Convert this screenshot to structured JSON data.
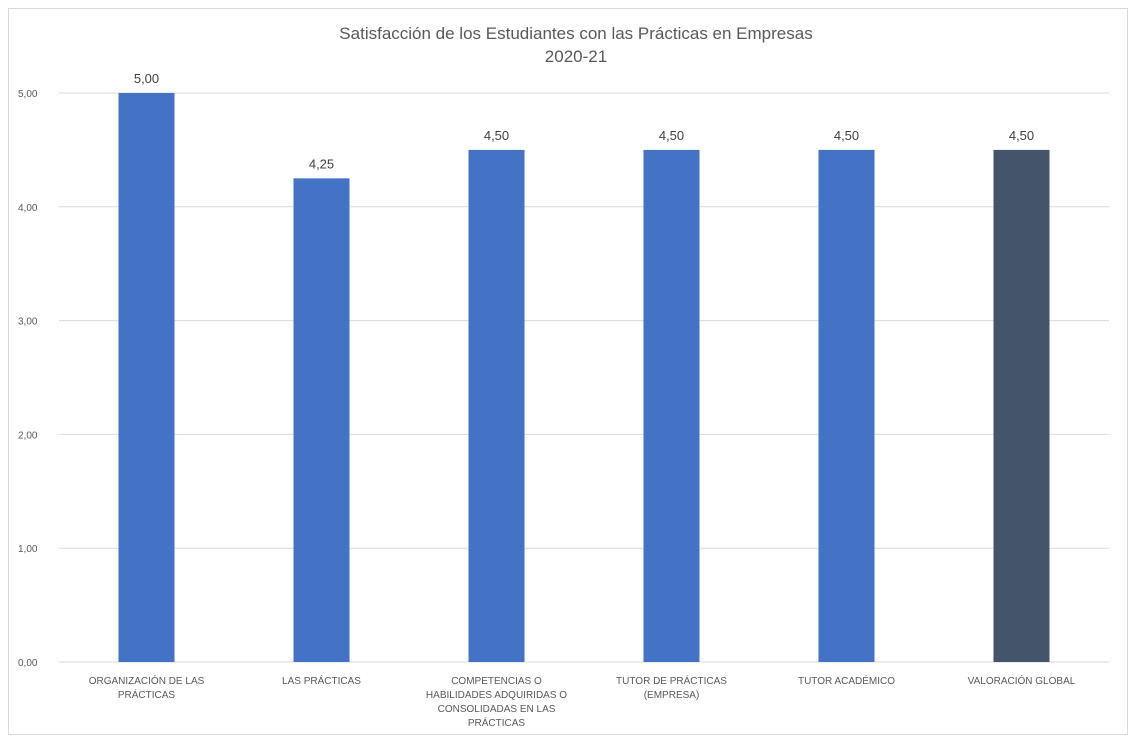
{
  "chart_data": {
    "type": "bar",
    "title": [
      "Satisfacción de los Estudiantes con las Prácticas en Empresas",
      "2020-21"
    ],
    "categories": [
      [
        "ORGANIZACIÓN DE LAS",
        "PRÁCTICAS"
      ],
      [
        "LAS PRÁCTICAS"
      ],
      [
        "COMPETENCIAS O",
        "HABILIDADES ADQUIRIDAS O",
        "CONSOLIDADAS EN LAS",
        "PRÁCTICAS"
      ],
      [
        "TUTOR DE PRÁCTICAS",
        "(EMPRESA)"
      ],
      [
        "TUTOR ACADÉMICO"
      ],
      [
        "VALORACIÓN GLOBAL"
      ]
    ],
    "values": [
      5.0,
      4.25,
      4.5,
      4.5,
      4.5,
      4.5
    ],
    "data_labels": [
      "5,00",
      "4,25",
      "4,50",
      "4,50",
      "4,50",
      "4,50"
    ],
    "bar_colors": [
      "#4472c4",
      "#4472c4",
      "#4472c4",
      "#4472c4",
      "#4472c4",
      "#44546a"
    ],
    "ylim": [
      0,
      5
    ],
    "yticks": [
      0,
      1,
      2,
      3,
      4,
      5
    ],
    "ytick_labels": [
      "0,00",
      "1,00",
      "2,00",
      "3,00",
      "4,00",
      "5,00"
    ],
    "grid": true,
    "legend": "none",
    "grid_color": "#d9d9d9"
  }
}
